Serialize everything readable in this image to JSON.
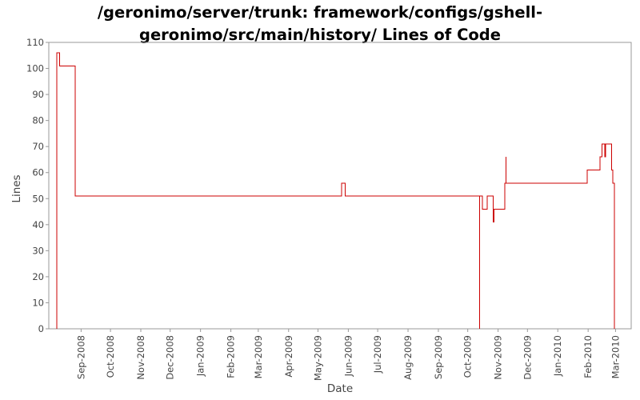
{
  "chart_data": {
    "type": "line",
    "title_line1": "/geronimo/server/trunk: framework/configs/gshell-",
    "title_line2": "geronimo/src/main/history/ Lines of Code",
    "xlabel": "Date",
    "ylabel": "Lines",
    "ylim": [
      0,
      110
    ],
    "yticks": [
      0,
      10,
      20,
      30,
      40,
      50,
      60,
      70,
      80,
      90,
      100,
      110
    ],
    "xlim": [
      "2008-07-30",
      "2010-03-17"
    ],
    "xticks": [
      {
        "date": "2008-09-01",
        "label": "Sep-2008"
      },
      {
        "date": "2008-10-01",
        "label": "Oct-2008"
      },
      {
        "date": "2008-11-01",
        "label": "Nov-2008"
      },
      {
        "date": "2008-12-01",
        "label": "Dec-2008"
      },
      {
        "date": "2009-01-01",
        "label": "Jan-2009"
      },
      {
        "date": "2009-02-01",
        "label": "Feb-2009"
      },
      {
        "date": "2009-03-01",
        "label": "Mar-2009"
      },
      {
        "date": "2009-04-01",
        "label": "Apr-2009"
      },
      {
        "date": "2009-05-01",
        "label": "May-2009"
      },
      {
        "date": "2009-06-01",
        "label": "Jun-2009"
      },
      {
        "date": "2009-07-01",
        "label": "Jul-2009"
      },
      {
        "date": "2009-08-01",
        "label": "Aug-2009"
      },
      {
        "date": "2009-09-01",
        "label": "Sep-2009"
      },
      {
        "date": "2009-10-01",
        "label": "Oct-2009"
      },
      {
        "date": "2009-11-01",
        "label": "Nov-2009"
      },
      {
        "date": "2009-12-01",
        "label": "Dec-2009"
      },
      {
        "date": "2010-01-01",
        "label": "Jan-2010"
      },
      {
        "date": "2010-02-01",
        "label": "Feb-2010"
      },
      {
        "date": "2010-03-01",
        "label": "Mar-2010"
      }
    ],
    "grid": false,
    "line_color": "#cc0000",
    "series": [
      {
        "step": true,
        "points": [
          [
            "2008-08-07",
            0
          ],
          [
            "2008-08-07",
            106
          ],
          [
            "2008-08-10",
            101
          ],
          [
            "2008-08-26",
            51
          ],
          [
            "2009-05-25",
            56
          ],
          [
            "2009-05-29",
            51
          ],
          [
            "2009-10-13",
            0
          ],
          [
            "2009-10-13",
            51
          ],
          [
            "2009-10-16",
            46
          ],
          [
            "2009-10-21",
            51
          ],
          [
            "2009-10-27",
            41
          ],
          [
            "2009-10-28",
            46
          ],
          [
            "2009-11-08",
            56
          ],
          [
            "2009-11-09",
            66
          ],
          [
            "2009-11-09",
            56
          ],
          [
            "2010-01-31",
            61
          ],
          [
            "2010-02-13",
            66
          ],
          [
            "2010-02-15",
            71
          ],
          [
            "2010-02-18",
            66
          ],
          [
            "2010-02-19",
            71
          ],
          [
            "2010-02-25",
            61
          ],
          [
            "2010-02-26",
            56
          ],
          [
            "2010-02-28",
            0
          ]
        ]
      }
    ]
  }
}
